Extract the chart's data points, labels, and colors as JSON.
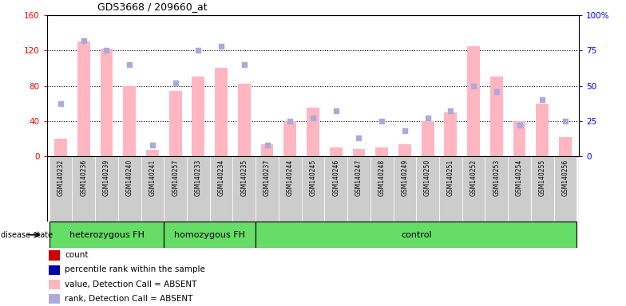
{
  "title": "GDS3668 / 209660_at",
  "samples": [
    "GSM140232",
    "GSM140236",
    "GSM140239",
    "GSM140240",
    "GSM140241",
    "GSM140257",
    "GSM140233",
    "GSM140234",
    "GSM140235",
    "GSM140237",
    "GSM140244",
    "GSM140245",
    "GSM140246",
    "GSM140247",
    "GSM140248",
    "GSM140249",
    "GSM140250",
    "GSM140251",
    "GSM140252",
    "GSM140253",
    "GSM140254",
    "GSM140255",
    "GSM140256"
  ],
  "count_values": [
    20,
    130,
    122,
    80,
    7,
    74,
    90,
    100,
    82,
    13,
    40,
    55,
    10,
    8,
    10,
    13,
    40,
    50,
    125,
    90,
    40,
    60,
    22
  ],
  "rank_values": [
    37,
    82,
    75,
    65,
    8,
    52,
    75,
    78,
    65,
    8,
    25,
    27,
    32,
    13,
    25,
    18,
    27,
    32,
    50,
    46,
    22,
    40,
    25
  ],
  "groups": [
    {
      "label": "heterozygous FH",
      "start": 0,
      "end": 5
    },
    {
      "label": "homozygous FH",
      "start": 5,
      "end": 9
    },
    {
      "label": "control",
      "start": 9,
      "end": 23
    }
  ],
  "ylim_left": [
    0,
    160
  ],
  "ylim_right": [
    0,
    100
  ],
  "yticks_left": [
    0,
    40,
    80,
    120,
    160
  ],
  "yticks_right": [
    0,
    25,
    50,
    75,
    100
  ],
  "absent_bar_color": "#FFB6C1",
  "absent_rank_color": "#AAAADD",
  "count_legend_color": "#CC0000",
  "rank_legend_color": "#0000AA",
  "group_color": "#66DD66",
  "col_bg_color": "#CCCCCC"
}
